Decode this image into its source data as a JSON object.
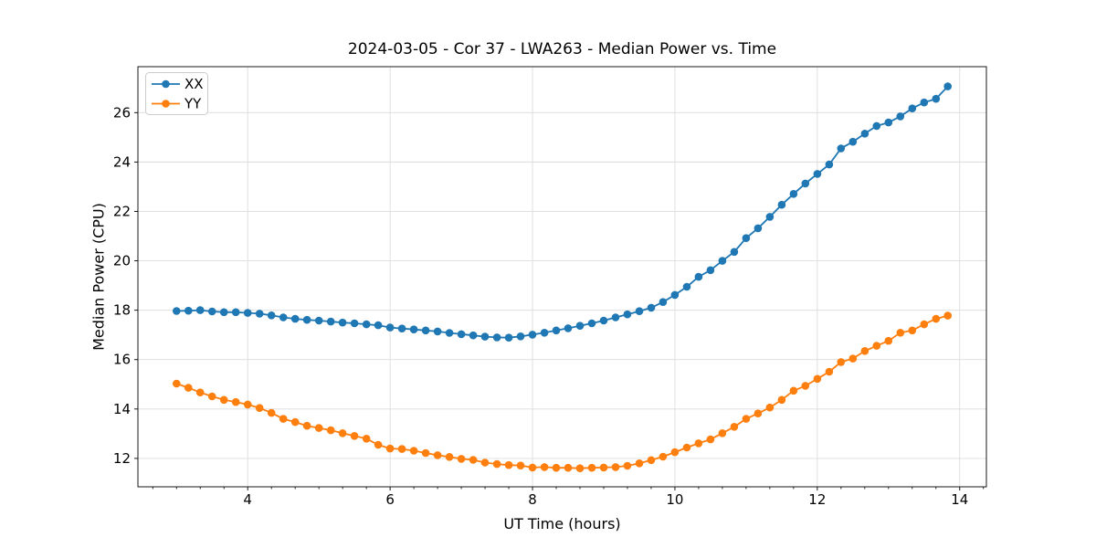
{
  "figure": {
    "title": "2024-03-05 - Cor 37 - LWA263 - Median Power vs. Time"
  },
  "chart_data": {
    "type": "line",
    "title": "2024-03-05 - Cor 37 - LWA263 - Median Power vs. Time",
    "xlabel": "UT Time (hours)",
    "ylabel": "Median Power (CPU)",
    "xlim": [
      2.458,
      14.375
    ],
    "ylim": [
      10.85,
      27.86
    ],
    "x_ticks": [
      4,
      6,
      8,
      10,
      12,
      14
    ],
    "y_ticks": [
      12,
      14,
      16,
      18,
      20,
      22,
      24,
      26
    ],
    "x_minor_tick_step": 0.3333,
    "grid": true,
    "legend": {
      "position": "upper left",
      "entries": [
        "XX",
        "YY"
      ]
    },
    "x": [
      3,
      3.167,
      3.333,
      3.5,
      3.667,
      3.833,
      4,
      4.167,
      4.333,
      4.5,
      4.667,
      4.833,
      5,
      5.167,
      5.333,
      5.5,
      5.667,
      5.833,
      6,
      6.167,
      6.333,
      6.5,
      6.667,
      6.833,
      7,
      7.167,
      7.333,
      7.5,
      7.667,
      7.833,
      8,
      8.167,
      8.333,
      8.5,
      8.667,
      8.833,
      9,
      9.167,
      9.333,
      9.5,
      9.667,
      9.833,
      10,
      10.167,
      10.333,
      10.5,
      10.667,
      10.833,
      11,
      11.167,
      11.333,
      11.5,
      11.667,
      11.833,
      12,
      12.167,
      12.333,
      12.5,
      12.667,
      12.833,
      13,
      13.167,
      13.333,
      13.5,
      13.667,
      13.833
    ],
    "series": [
      {
        "name": "XX",
        "color": "#1f77b4",
        "marker": "circle",
        "values": [
          17.97,
          17.98,
          18.0,
          17.95,
          17.92,
          17.92,
          17.89,
          17.86,
          17.79,
          17.71,
          17.65,
          17.61,
          17.58,
          17.54,
          17.5,
          17.47,
          17.43,
          17.39,
          17.3,
          17.26,
          17.22,
          17.18,
          17.14,
          17.08,
          17.03,
          16.98,
          16.93,
          16.9,
          16.89,
          16.94,
          17.01,
          17.09,
          17.18,
          17.27,
          17.37,
          17.47,
          17.58,
          17.71,
          17.83,
          17.96,
          18.1,
          18.33,
          18.62,
          18.95,
          19.35,
          19.62,
          20.0,
          20.36,
          20.92,
          21.32,
          21.78,
          22.27,
          22.71,
          23.13,
          23.52,
          23.9,
          24.55,
          24.82,
          25.15,
          25.46,
          25.6,
          25.85,
          26.17,
          26.41,
          26.56,
          27.06
        ]
      },
      {
        "name": "YY",
        "color": "#ff7f0e",
        "marker": "circle",
        "values": [
          15.03,
          14.86,
          14.67,
          14.51,
          14.37,
          14.28,
          14.18,
          14.04,
          13.84,
          13.6,
          13.47,
          13.32,
          13.23,
          13.14,
          13.02,
          12.91,
          12.8,
          12.55,
          12.4,
          12.38,
          12.31,
          12.22,
          12.13,
          12.06,
          11.98,
          11.94,
          11.83,
          11.77,
          11.73,
          11.71,
          11.63,
          11.65,
          11.62,
          11.62,
          11.6,
          11.62,
          11.63,
          11.65,
          11.7,
          11.8,
          11.93,
          12.07,
          12.25,
          12.44,
          12.61,
          12.77,
          13.02,
          13.28,
          13.6,
          13.82,
          14.06,
          14.37,
          14.74,
          14.94,
          15.22,
          15.51,
          15.9,
          16.04,
          16.35,
          16.56,
          16.76,
          17.09,
          17.18,
          17.43,
          17.65,
          17.78
        ]
      }
    ]
  },
  "colors": {
    "background": "#ffffff",
    "axis": "#000000",
    "grid": "#dcdcdc",
    "text": "#000000",
    "legend_border": "#cccccc",
    "series_xx": "#1f77b4",
    "series_yy": "#ff7f0e"
  }
}
